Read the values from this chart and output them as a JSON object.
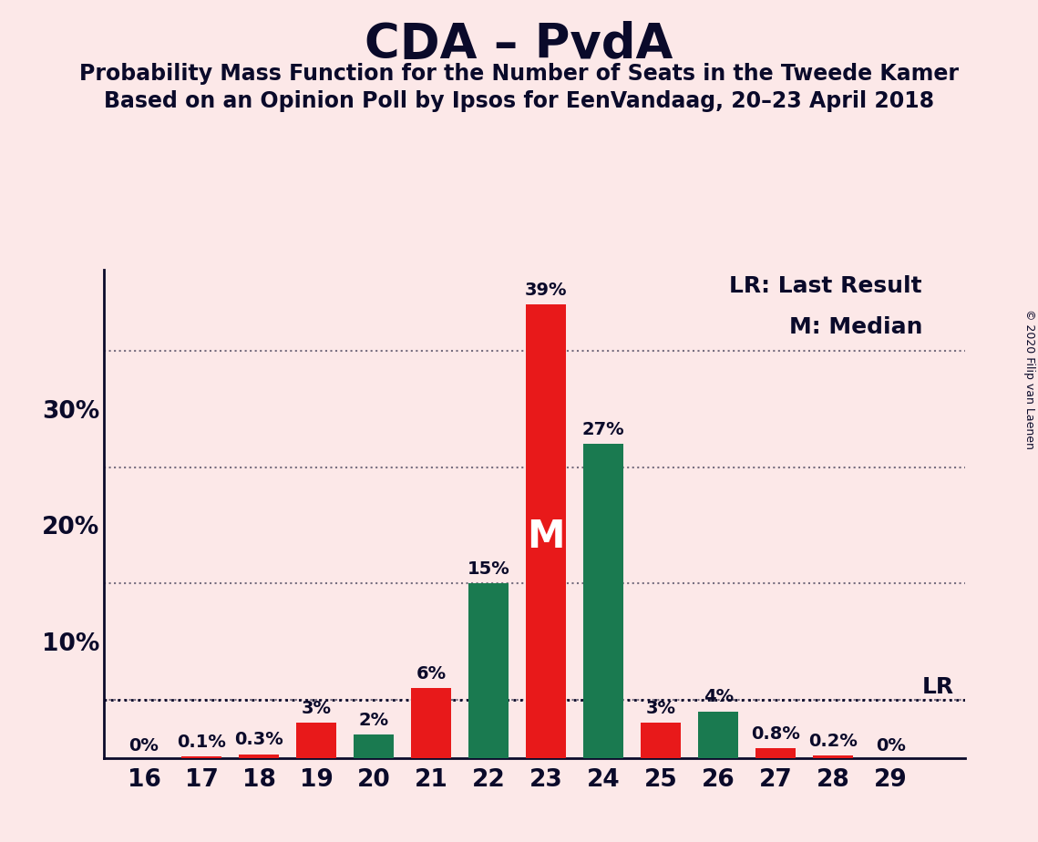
{
  "title": "CDA – PvdA",
  "subtitle1": "Probability Mass Function for the Number of Seats in the Tweede Kamer",
  "subtitle2": "Based on an Opinion Poll by Ipsos for EenVandaag, 20–23 April 2018",
  "copyright": "© 2020 Filip van Laenen",
  "legend_lr": "LR: Last Result",
  "legend_m": "M: Median",
  "seats": [
    16,
    17,
    18,
    19,
    20,
    21,
    22,
    23,
    24,
    25,
    26,
    27,
    28,
    29
  ],
  "red_values": [
    0.0,
    0.1,
    0.3,
    3.0,
    0.0,
    6.0,
    0.0,
    39.0,
    0.0,
    3.0,
    0.0,
    0.8,
    0.2,
    0.0
  ],
  "green_values": [
    0.0,
    0.0,
    0.0,
    0.0,
    2.0,
    0.0,
    15.0,
    0.0,
    27.0,
    0.0,
    4.0,
    0.0,
    0.0,
    0.0
  ],
  "red_color": "#e8191a",
  "green_color": "#1a7a50",
  "background_color": "#fce8e8",
  "text_color": "#0a0a2a",
  "bar_labels_red": [
    "0%",
    "0.1%",
    "0.3%",
    "3%",
    "",
    "6%",
    "",
    "39%",
    "",
    "3%",
    "",
    "0.8%",
    "0.2%",
    "0%"
  ],
  "bar_labels_green": [
    "",
    "",
    "",
    "",
    "2%",
    "",
    "15%",
    "",
    "27%",
    "",
    "4%",
    "",
    "",
    ""
  ],
  "lr_value": 5.0,
  "ylim_max": 42,
  "grid_lines": [
    5,
    15,
    25,
    35
  ],
  "ytick_positions": [
    10,
    20,
    30
  ],
  "ytick_labels": [
    "10%",
    "20%",
    "30%"
  ],
  "bar_width": 0.7,
  "label_fontsize": 14,
  "tick_fontsize": 19,
  "title_fontsize": 38,
  "subtitle_fontsize": 17,
  "legend_fontsize": 18,
  "lr_fontsize": 18,
  "m_fontsize": 30,
  "copyright_fontsize": 9
}
